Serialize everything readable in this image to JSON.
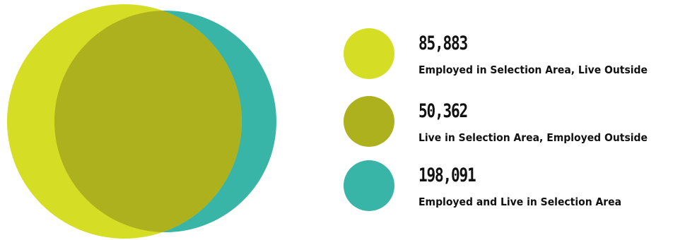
{
  "chart_data": {
    "type": "venn",
    "sets": [
      {
        "id": "employed_in_area",
        "value": "85,883",
        "label": "Employed in Selection Area, Live Outside",
        "color": "#d6dd25"
      },
      {
        "id": "live_in_area",
        "value": "50,362",
        "label": "Live in Selection Area, Employed Outside",
        "color": "#adb11d"
      },
      {
        "id": "both",
        "value": "198,091",
        "label": "Employed and Live in Selection Area",
        "color": "#38b5a7"
      }
    ]
  },
  "colors": {
    "employed_outside_circle": "#d6dd25",
    "overlap_region": "#adb11d",
    "live_circle": "#38b5a7"
  }
}
